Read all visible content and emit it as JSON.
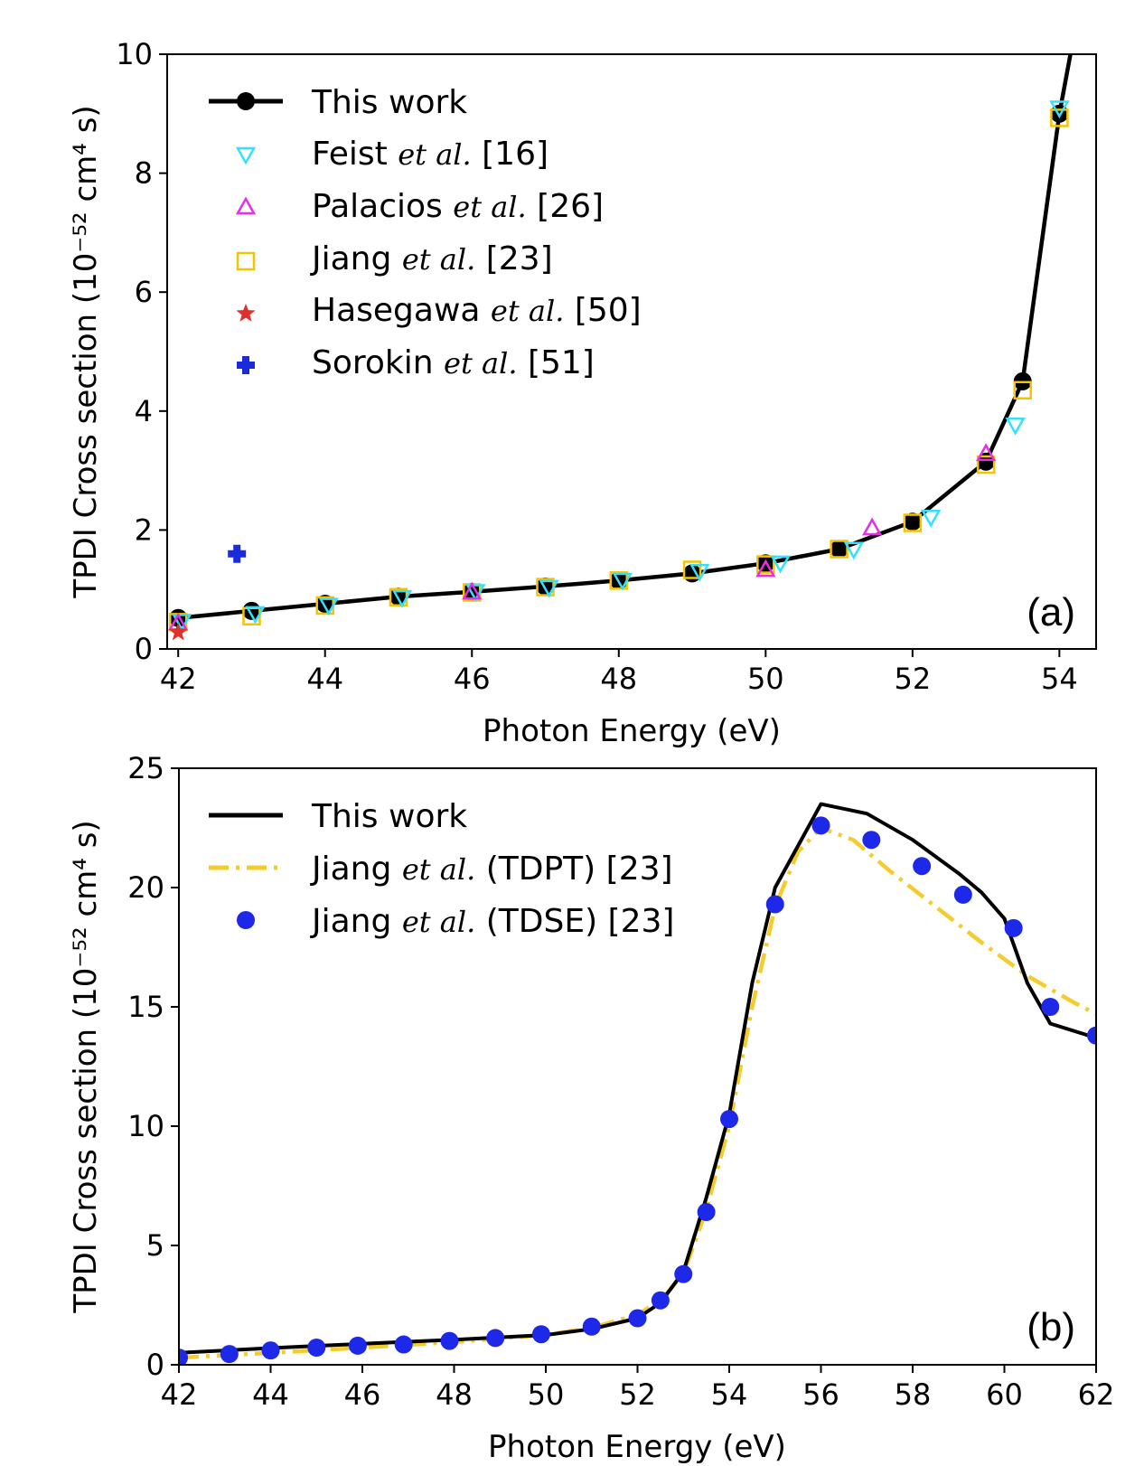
{
  "chart_data": [
    {
      "type": "line",
      "panel_label": "(a)",
      "xlabel": "Photon Energy (eV)",
      "ylabel": "TPDI Cross section (10⁻⁵² cm⁴ s)",
      "xlim": [
        41.85,
        54.5
      ],
      "ylim": [
        0,
        10
      ],
      "xticks": [
        42,
        44,
        46,
        48,
        50,
        52,
        54
      ],
      "yticks": [
        0,
        2,
        4,
        6,
        8,
        10
      ],
      "legend_position": "top-left",
      "series": [
        {
          "name": "This work",
          "label_main": "This work",
          "marker": "circle",
          "style": "line+marker",
          "color": "#000000",
          "x": [
            42,
            43,
            44,
            45,
            46,
            47,
            48,
            49,
            50,
            51,
            52,
            53,
            53.5,
            54,
            54.15
          ],
          "y": [
            0.52,
            0.64,
            0.76,
            0.88,
            0.96,
            1.05,
            1.15,
            1.27,
            1.44,
            1.68,
            2.14,
            3.15,
            4.5,
            9.0,
            10.0
          ],
          "marker_count": 14
        },
        {
          "name": "Feist et al. [16]",
          "label_main": "Feist",
          "label_ref": "[16]",
          "marker": "triangle-down",
          "color": "#33e0ff",
          "x": [
            42.05,
            43.05,
            44.05,
            45.05,
            46.05,
            47.05,
            48.05,
            49.1,
            50.2,
            51.2,
            52.25,
            53.4,
            54.0
          ],
          "y": [
            0.45,
            0.58,
            0.72,
            0.85,
            0.95,
            1.02,
            1.14,
            1.29,
            1.43,
            1.66,
            2.2,
            3.75,
            9.08
          ]
        },
        {
          "name": "Palacios et al. [26]",
          "label_main": "Palacios",
          "label_ref": "[26]",
          "marker": "triangle-up",
          "color": "#e62ee6",
          "x": [
            42.0,
            46.0,
            50.0,
            51.45,
            53.0
          ],
          "y": [
            0.45,
            0.97,
            1.35,
            2.05,
            3.3
          ]
        },
        {
          "name": "Jiang et al. [23]",
          "label_main": "Jiang",
          "label_ref": "[23]",
          "marker": "square",
          "color": "#f5c400",
          "x": [
            42,
            43,
            44,
            45,
            46,
            47,
            48,
            49,
            50,
            51,
            52,
            53,
            53.5,
            54
          ],
          "y": [
            0.45,
            0.55,
            0.73,
            0.87,
            0.95,
            1.04,
            1.15,
            1.33,
            1.42,
            1.68,
            2.12,
            3.1,
            4.35,
            8.93
          ]
        },
        {
          "name": "Hasegawa et al. [50]",
          "label_main": "Hasegawa",
          "label_ref": "[50]",
          "marker": "star",
          "color": "#e0302e",
          "x": [
            42.0
          ],
          "y": [
            0.28
          ]
        },
        {
          "name": "Sorokin et al. [51]",
          "label_main": "Sorokin",
          "label_ref": "[51]",
          "marker": "plus",
          "color": "#1a2bdc",
          "x": [
            42.8
          ],
          "y": [
            1.6
          ]
        }
      ]
    },
    {
      "type": "line",
      "panel_label": "(b)",
      "xlabel": "Photon Energy (eV)",
      "ylabel": "TPDI Cross section (10⁻⁵² cm⁴ s)",
      "xlim": [
        42,
        62
      ],
      "ylim": [
        0,
        25
      ],
      "xticks": [
        42,
        44,
        46,
        48,
        50,
        52,
        54,
        56,
        58,
        60,
        62
      ],
      "yticks": [
        0,
        5,
        10,
        15,
        20,
        25
      ],
      "legend_position": "top-left",
      "series": [
        {
          "name": "This work",
          "label_main": "This work",
          "style": "solid",
          "color": "#000000",
          "x": [
            42,
            44,
            46,
            48,
            50,
            51,
            52,
            52.5,
            53,
            53.5,
            54,
            54.5,
            55,
            56,
            57,
            58,
            59,
            59.5,
            60,
            60.5,
            61,
            62
          ],
          "y": [
            0.5,
            0.7,
            0.88,
            1.05,
            1.25,
            1.5,
            1.95,
            2.6,
            3.9,
            7.0,
            10.5,
            16.0,
            20.0,
            23.5,
            23.1,
            22.0,
            20.6,
            19.8,
            18.7,
            16.0,
            14.3,
            13.7
          ]
        },
        {
          "name": "Jiang et al. (TDPT) [23]",
          "label_main": "Jiang",
          "label_ref": "(TDPT) [23]",
          "style": "dashdot",
          "color": "#f5cc2e",
          "x": [
            42,
            44,
            46,
            48,
            50,
            51,
            52,
            52.5,
            53,
            53.5,
            54,
            54.5,
            55,
            55.5,
            56,
            56.7,
            57.5,
            58.5,
            59.5,
            60.5,
            61.5,
            62
          ],
          "y": [
            0.3,
            0.5,
            0.72,
            0.95,
            1.25,
            1.55,
            2.1,
            2.7,
            3.8,
            6.5,
            10.0,
            15.0,
            19.2,
            21.5,
            22.5,
            22.0,
            20.7,
            19.2,
            17.7,
            16.3,
            15.2,
            14.7
          ]
        },
        {
          "name": "Jiang et al. (TDSE) [23]",
          "label_main": "Jiang",
          "label_ref": "(TDSE) [23]",
          "style": "marker",
          "marker": "circle",
          "color": "#1e28e8",
          "x": [
            42.0,
            43.1,
            44.0,
            45.0,
            45.9,
            46.9,
            47.9,
            48.9,
            49.9,
            51.0,
            52.0,
            52.5,
            53.0,
            53.5,
            54.0,
            55.0,
            56.0,
            57.1,
            58.2,
            59.1,
            60.2,
            61.0,
            62.0
          ],
          "y": [
            0.3,
            0.45,
            0.6,
            0.72,
            0.8,
            0.85,
            1.0,
            1.12,
            1.28,
            1.6,
            1.95,
            2.7,
            3.8,
            6.4,
            10.3,
            19.3,
            22.6,
            22.0,
            20.9,
            19.7,
            18.3,
            15.0,
            13.8
          ]
        }
      ]
    }
  ]
}
